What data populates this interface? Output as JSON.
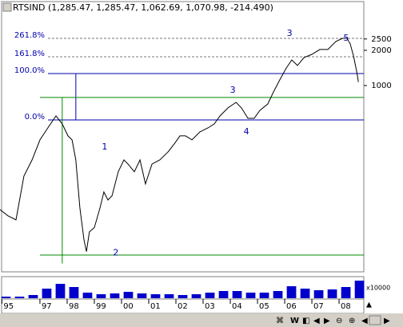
{
  "chart_data": {
    "type": "line",
    "title": "RTSIND (1,285.47, 1,285.47, 1,062.69, 1,070.98, -214.490)",
    "log_scale": true,
    "color": "#000000",
    "xlim": [
      1995.59,
      2008.91
    ],
    "ylim": [
      25.5,
      5220
    ],
    "yticks": [
      1000,
      2000,
      2500
    ],
    "xticks": [
      {
        "value": 1995.6,
        "label": "95"
      },
      {
        "value": 1997,
        "label": "97"
      },
      {
        "value": 1998,
        "label": "98"
      },
      {
        "value": 1999,
        "label": "99"
      },
      {
        "value": 2000,
        "label": "00"
      },
      {
        "value": 2001,
        "label": "01"
      },
      {
        "value": 2002,
        "label": "02"
      },
      {
        "value": 2003,
        "label": "03"
      },
      {
        "value": 2004,
        "label": "04"
      },
      {
        "value": 2005,
        "label": "05"
      },
      {
        "value": 2006,
        "label": "06"
      },
      {
        "value": 2007,
        "label": "07"
      },
      {
        "value": 2008,
        "label": "08"
      }
    ],
    "x": [
      1995.53,
      1995.82,
      1996.12,
      1996.41,
      1996.71,
      1997,
      1997.29,
      1997.59,
      1997.82,
      1998.03,
      1998.18,
      1998.32,
      1998.47,
      1998.62,
      1998.71,
      1998.82,
      1999,
      1999.21,
      1999.35,
      1999.5,
      1999.65,
      1999.88,
      2000.09,
      2000.24,
      2000.47,
      2000.68,
      2000.88,
      2001.12,
      2001.41,
      2001.71,
      2001.94,
      2002.15,
      2002.35,
      2002.59,
      2002.88,
      2003.18,
      2003.41,
      2003.62,
      2003.91,
      2004.21,
      2004.41,
      2004.65,
      2004.88,
      2005.09,
      2005.38,
      2005.59,
      2005.82,
      2006.06,
      2006.26,
      2006.47,
      2006.71,
      2007,
      2007.29,
      2007.59,
      2007.88,
      2008.12,
      2008.29,
      2008.41,
      2008.53,
      2008.65,
      2008.71
    ],
    "values": [
      87,
      77,
      71,
      168,
      231,
      343,
      434,
      549,
      470,
      371,
      343,
      231,
      90,
      48,
      38,
      56,
      61,
      90,
      123,
      105,
      114,
      183,
      231,
      213,
      183,
      231,
      144,
      213,
      231,
      270,
      317,
      371,
      371,
      343,
      401,
      434,
      470,
      549,
      643,
      718,
      643,
      524,
      524,
      613,
      696,
      882,
      1117,
      1414,
      1655,
      1483,
      1735,
      1848,
      2032,
      2032,
      2378,
      2530,
      2530,
      2270,
      1790,
      1307,
      1071
    ],
    "fib_levels": [
      {
        "label": "261.8%",
        "value": 2530,
        "style": "dashed"
      },
      {
        "label": "161.8%",
        "value": 1760,
        "style": "dashed"
      },
      {
        "label": "100.0%",
        "value": 1266,
        "style": "solid"
      },
      {
        "label": "0.0%",
        "value": 508,
        "style": "solid"
      }
    ],
    "fib_color": "#0000aa",
    "guides": {
      "color": "#008800",
      "levels": [
        790,
        35.5
      ],
      "vertical_x": 1997.82,
      "vertical_range": [
        790,
        30
      ]
    },
    "fib_vertical": {
      "x": 1998.32,
      "range": [
        1266,
        508
      ]
    },
    "waves": [
      {
        "text": "1",
        "x": 1999.38,
        "y": 297
      },
      {
        "text": "2",
        "x": 1999.79,
        "y": 37
      },
      {
        "text": "3",
        "x": 2004.09,
        "y": 910
      },
      {
        "text": "4",
        "x": 2004.59,
        "y": 401
      },
      {
        "text": "3",
        "x": 2006.18,
        "y": 2784
      },
      {
        "text": "5",
        "x": 2008.26,
        "y": 2530
      }
    ],
    "volume": {
      "unit_label": "x10000",
      "color": "#0000cc",
      "vlim": [
        0,
        25
      ],
      "x": [
        1995.75,
        1996.25,
        1996.75,
        1997.25,
        1997.75,
        1998.25,
        1998.75,
        1999.25,
        1999.75,
        2000.25,
        2000.75,
        2001.25,
        2001.75,
        2002.25,
        2002.75,
        2003.25,
        2003.75,
        2004.25,
        2004.75,
        2005.25,
        2005.75,
        2006.25,
        2006.75,
        2007.25,
        2007.75,
        2008.25,
        2008.75
      ],
      "values": [
        2,
        2,
        4,
        12,
        18,
        14,
        7,
        5,
        6,
        8,
        6,
        5,
        5,
        4,
        5,
        7,
        9,
        9,
        7,
        7,
        9,
        15,
        12,
        10,
        11,
        14,
        22
      ]
    }
  }
}
